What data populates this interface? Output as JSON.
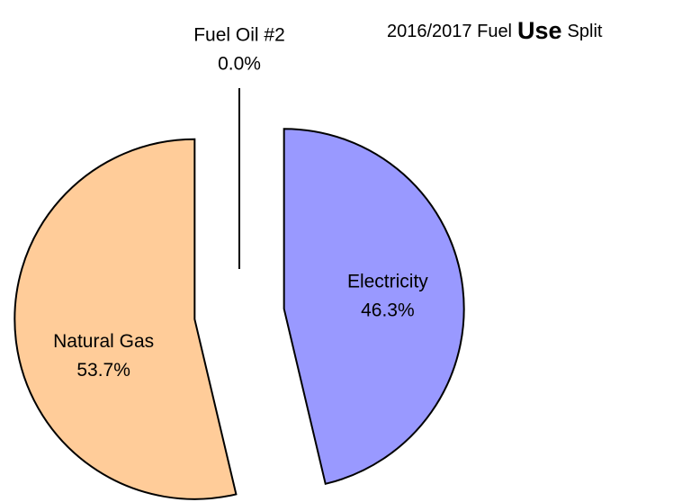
{
  "chart_data": {
    "type": "pie",
    "title_parts": [
      "2016/2017 Fuel",
      "Use",
      "Split"
    ],
    "categories": [
      "Electricity",
      "Natural Gas",
      "Fuel Oil #2"
    ],
    "values": [
      46.3,
      53.7,
      0.0
    ],
    "value_labels": [
      "46.3%",
      "53.7%",
      "0.0%"
    ],
    "colors": [
      "#9999ff",
      "#ffcc99",
      "#cccccc"
    ]
  }
}
